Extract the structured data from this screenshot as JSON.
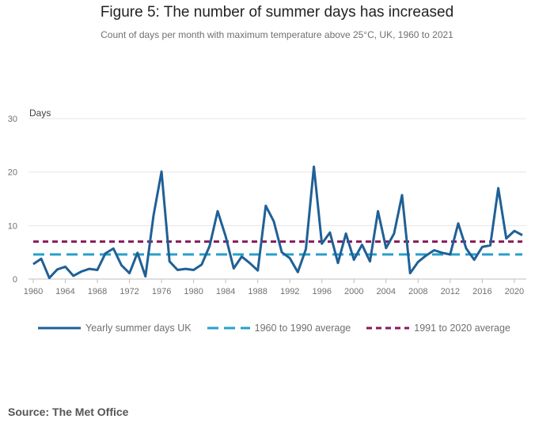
{
  "header": {
    "title": "Figure 5: The number of summer days has increased",
    "subtitle": "Count of days per month with maximum temperature above 25°C, UK, 1960 to 2021"
  },
  "source": {
    "text": "Source: The Met Office"
  },
  "chart_data": {
    "type": "line",
    "title": "Figure 5: The number of summer days has increased",
    "subtitle": "Count of days per month with maximum temperature above 25°C, UK, 1960 to 2021",
    "xlabel": "",
    "ylabel": "Days",
    "xlim": [
      1960,
      2021
    ],
    "ylim": [
      0,
      30
    ],
    "yticks": [
      0,
      10,
      20,
      30
    ],
    "xticks": [
      1960,
      1964,
      1968,
      1972,
      1976,
      1980,
      1984,
      1988,
      1992,
      1996,
      2000,
      2004,
      2008,
      2012,
      2016,
      2020
    ],
    "grid": "horizontal",
    "legend_position": "bottom",
    "colors": {
      "yearly": "#206095",
      "avg_1960_1990": "#27a0cc",
      "avg_1991_2020": "#871a5b"
    },
    "series": [
      {
        "name": "Yearly summer days UK",
        "style": "solid",
        "x": [
          1960,
          1961,
          1962,
          1963,
          1964,
          1965,
          1966,
          1967,
          1968,
          1969,
          1970,
          1971,
          1972,
          1973,
          1974,
          1975,
          1976,
          1977,
          1978,
          1979,
          1980,
          1981,
          1982,
          1983,
          1984,
          1985,
          1986,
          1987,
          1988,
          1989,
          1990,
          1991,
          1992,
          1993,
          1994,
          1995,
          1996,
          1997,
          1998,
          1999,
          2000,
          2001,
          2002,
          2003,
          2004,
          2005,
          2006,
          2007,
          2008,
          2009,
          2010,
          2011,
          2012,
          2013,
          2014,
          2015,
          2016,
          2017,
          2018,
          2019,
          2020,
          2021
        ],
        "values": [
          2.8,
          3.8,
          0.2,
          1.8,
          2.3,
          0.6,
          1.4,
          1.9,
          1.7,
          4.8,
          5.7,
          2.6,
          1.1,
          4.9,
          0.5,
          11.9,
          20.1,
          3.3,
          1.7,
          1.9,
          1.7,
          2.7,
          6.2,
          12.7,
          8.0,
          2.0,
          4.2,
          3.0,
          1.6,
          13.7,
          10.8,
          5.0,
          3.9,
          1.3,
          5.6,
          21.0,
          6.6,
          8.7,
          3.0,
          8.5,
          3.6,
          6.4,
          3.3,
          12.7,
          5.8,
          8.5,
          15.7,
          1.1,
          3.2,
          4.4,
          5.4,
          4.9,
          4.6,
          10.4,
          5.7,
          3.6,
          6.0,
          6.3,
          17.0,
          7.6,
          9.0,
          8.2
        ]
      },
      {
        "name": "1960 to 1990 average",
        "style": "dashed",
        "x": [
          1960,
          2021
        ],
        "values": [
          4.6,
          4.6
        ]
      },
      {
        "name": "1991 to 2020 average",
        "style": "dashed",
        "x": [
          1960,
          2021
        ],
        "values": [
          7.0,
          7.0
        ]
      }
    ]
  }
}
